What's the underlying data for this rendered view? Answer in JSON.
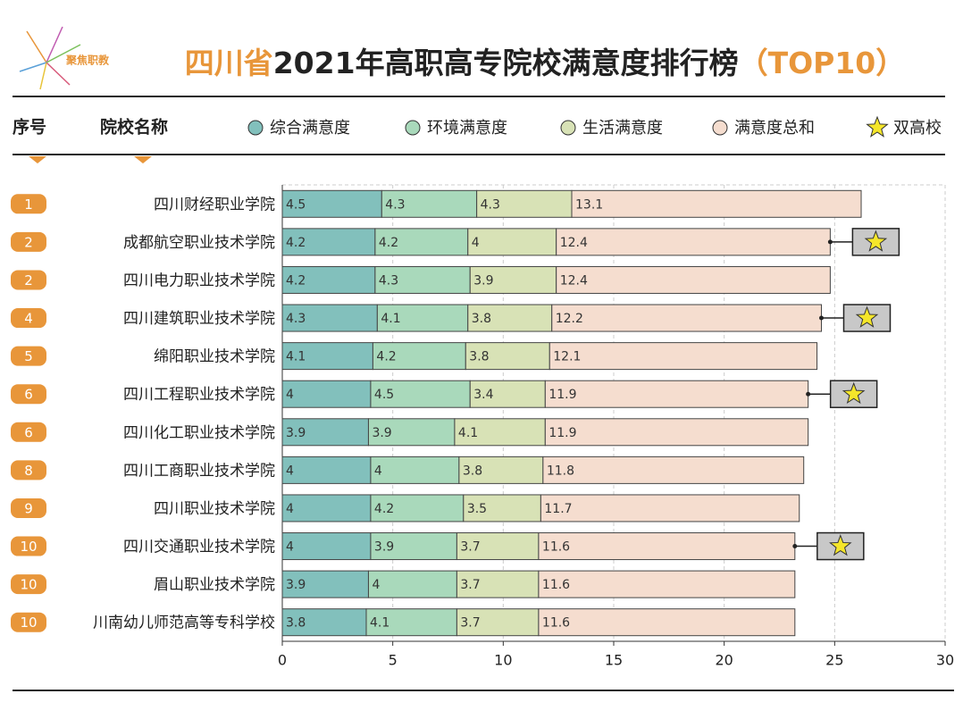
{
  "logo": "聚焦职教",
  "chart_data": {
    "type": "stacked-bar-horizontal",
    "title": [
      "四川省",
      "2021年高职高专院校满意度排行榜",
      "（TOP10）"
    ],
    "rank_header": "序号",
    "name_header": "院校名称",
    "ranks": [
      1,
      2,
      2,
      4,
      5,
      6,
      6,
      8,
      9,
      10,
      10,
      10
    ],
    "categories": [
      "四川财经职业学院",
      "成都航空职业技术学院",
      "四川电力职业技术学院",
      "四川建筑职业技术学院",
      "绵阳职业技术学院",
      "四川工程职业技术学院",
      "四川化工职业技术学院",
      "四川工商职业技术学院",
      "四川职业技术学院",
      "四川交通职业技术学院",
      "眉山职业技术学院",
      "川南幼儿师范高等专科学校"
    ],
    "series": [
      {
        "name": "综合满意度",
        "color": "#82c0bc",
        "values": [
          4.5,
          4.2,
          4.2,
          4.3,
          4.1,
          4,
          3.9,
          4,
          4,
          4,
          3.9,
          3.8
        ]
      },
      {
        "name": "环境满意度",
        "color": "#a9d9bb",
        "values": [
          4.3,
          4.2,
          4.3,
          4.1,
          4.2,
          4.5,
          3.9,
          4,
          4.2,
          3.9,
          4,
          4.1
        ]
      },
      {
        "name": "生活满意度",
        "color": "#d8e2b6",
        "values": [
          4.3,
          4,
          3.9,
          3.8,
          3.8,
          3.4,
          4.1,
          3.8,
          3.5,
          3.7,
          3.7,
          3.7
        ]
      },
      {
        "name": "满意度总和",
        "color": "#f5ddcf",
        "values": [
          13.1,
          12.4,
          12.4,
          12.2,
          12.1,
          11.9,
          11.9,
          11.8,
          11.7,
          11.6,
          11.6,
          11.6
        ]
      }
    ],
    "star_label": "双高校",
    "double_high": [
      false,
      true,
      false,
      true,
      false,
      true,
      false,
      false,
      false,
      true,
      false,
      false
    ],
    "xlim": [
      0,
      30
    ],
    "xticks": [
      0,
      5,
      10,
      15,
      20,
      25,
      30
    ],
    "grid": true
  }
}
